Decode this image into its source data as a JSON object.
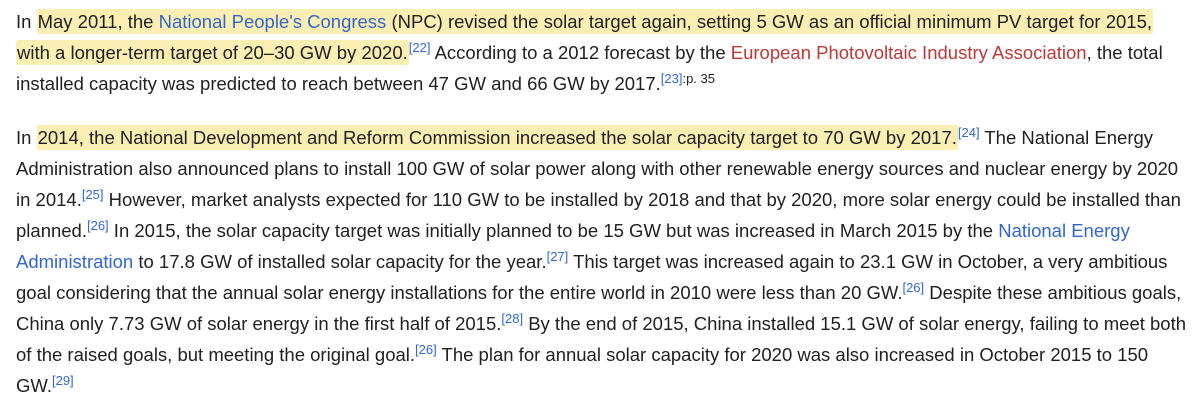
{
  "p1": {
    "t1": "In ",
    "hl_a": "May 2011, the ",
    "link_npc": "National People's Congress",
    "hl_b": " (NPC) revised the solar target again, setting 5 GW as an official minimum PV target for 2015, with a longer-term target of 20–30 GW by 2020.",
    "ref22": "[22]",
    "t2": " According to a 2012 forecast by the ",
    "link_epia": "European Photovoltaic Industry Association",
    "t3": ", the total installed capacity was predicted to reach between 47 GW and 66 GW by 2017.",
    "ref23": "[23]",
    "ref23_page": ":p. 35"
  },
  "p2": {
    "t1": "In ",
    "hl": "2014, the National Development and Reform Commission increased the solar capacity target to 70 GW by 2017.",
    "ref24": "[24]",
    "t2": " The National Energy Administration also announced plans to install 100 GW of solar power along with other renewable energy sources and nuclear energy by 2020 in 2014.",
    "ref25": "[25]",
    "t3": " However, market analysts expected for 110 GW to be installed by 2018 and that by 2020, more solar energy could be installed than planned.",
    "ref26a": "[26]",
    "t4": " In 2015, the solar capacity target was initially planned to be 15 GW but was increased in March 2015 by the ",
    "link_nea": "National Energy Administration",
    "t5": " to 17.8 GW of installed solar capacity for the year.",
    "ref27": "[27]",
    "t6": " This target was increased again to 23.1 GW in October, a very ambitious goal considering that the annual solar energy installations for the entire world in 2010 were less than 20 GW.",
    "ref26b": "[26]",
    "t7": " Despite these ambitious goals, China only 7.73 GW of solar energy in the first half of 2015.",
    "ref28": "[28]",
    "t8": " By the end of 2015, China installed 15.1 GW of solar energy, failing to meet both of the raised goals, but meeting the original goal.",
    "ref26c": "[26]",
    "t9": " The plan for annual solar capacity for 2020 was also increased in October 2015 to 150 GW.",
    "ref29": "[29]"
  }
}
